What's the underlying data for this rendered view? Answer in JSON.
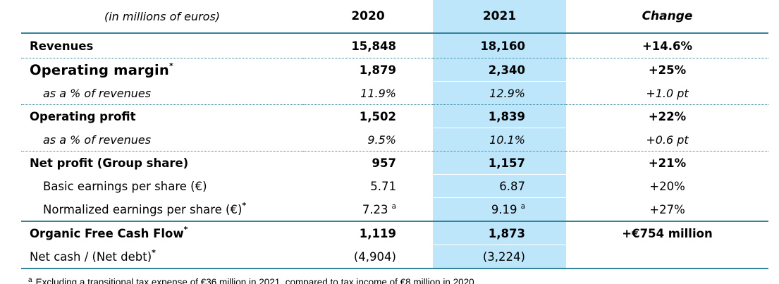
{
  "table": {
    "header": {
      "unit_label": "(in millions of euros)",
      "col_2020": "2020",
      "col_2021": "2021",
      "col_change": "Change"
    },
    "rows": [
      {
        "label": "Revenues",
        "sup": "",
        "v2020": "15,848",
        "v2020_sup": "",
        "v2021": "18,160",
        "v2021_sup": "",
        "change": "+14.6%",
        "style": "bold",
        "sep": "solid",
        "first": true
      },
      {
        "label": "Operating margin",
        "sup": "*",
        "v2020": "1,879",
        "v2020_sup": "",
        "v2021": "2,340",
        "v2021_sup": "",
        "change": "+25%",
        "style": "bold-large",
        "sep": "dotted"
      },
      {
        "label": "as a % of revenues",
        "sup": "",
        "v2020": "11.9%",
        "v2020_sup": "",
        "v2021": "12.9%",
        "v2021_sup": "",
        "change": "+1.0 pt",
        "style": "sub-italic",
        "sep": "white"
      },
      {
        "label": "Operating profit",
        "sup": "",
        "v2020": "1,502",
        "v2020_sup": "",
        "v2021": "1,839",
        "v2021_sup": "",
        "change": "+22%",
        "style": "bold",
        "sep": "dotted"
      },
      {
        "label": "as a % of revenues",
        "sup": "",
        "v2020": "9.5%",
        "v2020_sup": "",
        "v2021": "10.1%",
        "v2021_sup": "",
        "change": "+0.6 pt",
        "style": "sub-italic",
        "sep": "white"
      },
      {
        "label": "Net profit (Group share)",
        "sup": "",
        "v2020": "957",
        "v2020_sup": "",
        "v2021": "1,157",
        "v2021_sup": "",
        "change": "+21%",
        "style": "bold",
        "sep": "dotted"
      },
      {
        "label": "Basic earnings per share (€)",
        "sup": "",
        "v2020": "5.71",
        "v2020_sup": "",
        "v2021": "6.87",
        "v2021_sup": "",
        "change": "+20%",
        "style": "sub-plain",
        "sep": "white"
      },
      {
        "label": "Normalized earnings per share (€)",
        "sup": "*",
        "v2020": "7.23",
        "v2020_sup": "a",
        "v2021": "9.19",
        "v2021_sup": "a",
        "change": "+27%",
        "style": "sub-plain",
        "sep": "white"
      },
      {
        "label": "Organic Free Cash Flow",
        "sup": "*",
        "v2020": "1,119",
        "v2020_sup": "",
        "v2021": "1,873",
        "v2021_sup": "",
        "change": "+€754 million",
        "style": "bold",
        "sep": "solid"
      },
      {
        "label": "Net cash / (Net debt)",
        "sup": "*",
        "v2020": "(4,904)",
        "v2020_sup": "",
        "v2021": "(3,224)",
        "v2021_sup": "",
        "change": "",
        "style": "plain",
        "sep": "white"
      }
    ]
  },
  "footnote": {
    "marker": "a",
    "text": "Excluding a transitional tax expense of €36 million in 2021, compared to tax income of €8 million in 2020."
  },
  "colors": {
    "accent_teal": "#31849B",
    "highlight_blue": "#BDE6FA"
  }
}
